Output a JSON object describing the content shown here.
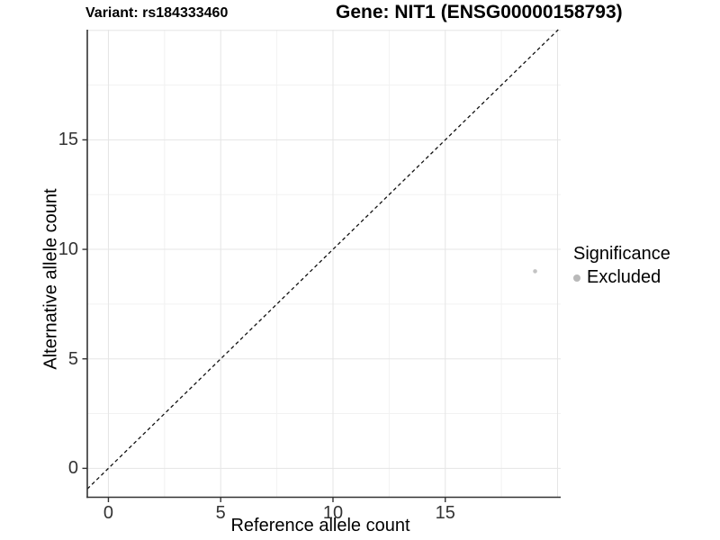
{
  "chart_data": {
    "type": "scatter",
    "titles": {
      "left": "Variant: rs184333460",
      "right": "Gene: NIT1 (ENSG00000158793)"
    },
    "xlabel": "Reference allele count",
    "ylabel": "Alternative allele count",
    "xlim": [
      -0.94,
      20.14
    ],
    "ylim": [
      -1.32,
      20.03
    ],
    "x_ticks": [
      0,
      5,
      10,
      15
    ],
    "y_ticks": [
      0,
      5,
      10,
      15
    ],
    "x_grid_major": [
      0,
      5,
      10,
      15,
      20
    ],
    "x_grid_minor": [
      2.5,
      7.5,
      12.5,
      17.5
    ],
    "y_grid_major": [
      0,
      5,
      10,
      15,
      20
    ],
    "y_grid_minor": [
      2.5,
      7.5,
      12.5,
      17.5
    ],
    "grid": true,
    "legend_position": "right",
    "reference_line": {
      "type": "identity y=x",
      "style": "dashed",
      "color": "#111111"
    },
    "series": [
      {
        "name": "Excluded",
        "marker": "circle",
        "color": "#c3c3c3",
        "points": [
          {
            "x": 19,
            "y": 9
          }
        ]
      }
    ]
  },
  "legend": {
    "title": "Significance",
    "items": [
      {
        "label": "Excluded",
        "color": "#b9b9b9"
      }
    ]
  },
  "colors": {
    "background": "#ffffff",
    "grid_major": "#e5e5e5",
    "grid_minor": "#f2f2f2",
    "axis_line": "#333333",
    "tick_mark": "#333333",
    "tick_label": "#333333",
    "text": "#000000",
    "point": "#c3c3c3",
    "legend_marker": "#b9b9b9"
  }
}
